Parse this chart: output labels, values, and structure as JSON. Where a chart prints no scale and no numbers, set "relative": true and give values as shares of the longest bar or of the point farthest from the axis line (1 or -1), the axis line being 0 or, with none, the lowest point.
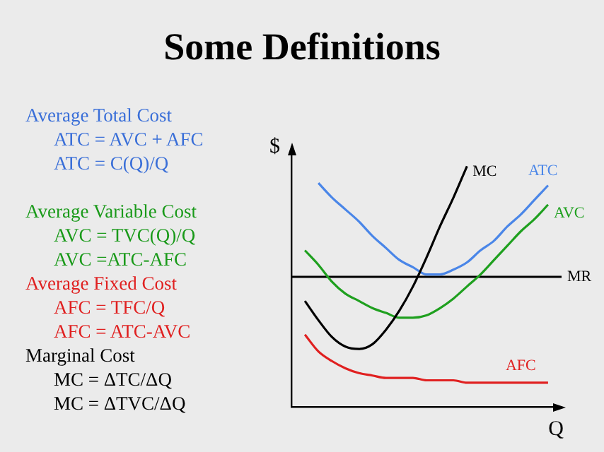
{
  "chart_data": {
    "type": "line",
    "title": "Some Definitions",
    "xlabel": "Q",
    "ylabel": "$",
    "relative": true,
    "grid": false,
    "legend": false,
    "marker": "none",
    "line_style": "solid",
    "categories": [
      null,
      null,
      null,
      null,
      null,
      null,
      null,
      null,
      null,
      null,
      null,
      null,
      null,
      null,
      null,
      null,
      null,
      null,
      null,
      null,
      null
    ],
    "series": [
      {
        "name": "MC",
        "color": "#000000",
        "values": [
          null,
          0.44,
          0.36,
          0.29,
          0.25,
          0.24,
          0.26,
          0.32,
          0.4,
          0.5,
          0.62,
          0.75,
          0.87,
          1.0,
          null,
          null,
          null,
          null,
          null,
          null,
          null
        ]
      },
      {
        "name": "ATC",
        "color": "#4a86e8",
        "values": [
          null,
          null,
          0.93,
          0.87,
          0.82,
          0.77,
          0.71,
          0.66,
          0.61,
          0.58,
          0.55,
          0.55,
          0.57,
          0.6,
          0.65,
          0.69,
          0.75,
          0.8,
          0.86,
          0.92,
          null
        ]
      },
      {
        "name": "AVC",
        "color": "#1fa01f",
        "values": [
          null,
          0.65,
          0.59,
          0.52,
          0.47,
          0.44,
          0.41,
          0.39,
          0.37,
          0.37,
          0.38,
          0.41,
          0.45,
          0.5,
          0.55,
          0.61,
          0.67,
          0.73,
          0.78,
          0.84,
          null
        ]
      },
      {
        "name": "MR",
        "color": "#000000",
        "values": [
          0.54,
          0.54,
          0.54,
          0.54,
          0.54,
          0.54,
          0.54,
          0.54,
          0.54,
          0.54,
          0.54,
          0.54,
          0.54,
          0.54,
          0.54,
          0.54,
          0.54,
          0.54,
          0.54,
          0.54,
          0.54
        ]
      },
      {
        "name": "AFC",
        "color": "#e02020",
        "values": [
          null,
          0.3,
          0.23,
          0.19,
          0.16,
          0.14,
          0.13,
          0.12,
          0.12,
          0.12,
          0.11,
          0.11,
          0.11,
          0.1,
          0.1,
          0.1,
          0.1,
          0.1,
          0.1,
          0.1,
          null
        ]
      }
    ],
    "annotations": [
      "Average Total Cost",
      "ATC = AVC + AFC",
      "ATC = C(Q)/Q",
      "Average Variable Cost",
      "AVC = TVC(Q)/Q",
      "AVC =ATC-AFC",
      "Average Fixed Cost",
      "AFC = TFC/Q",
      "AFC = ATC-AVC",
      "Marginal Cost",
      "MC = ΔTC/ΔQ",
      "MC = ΔTVC/ΔQ"
    ]
  }
}
